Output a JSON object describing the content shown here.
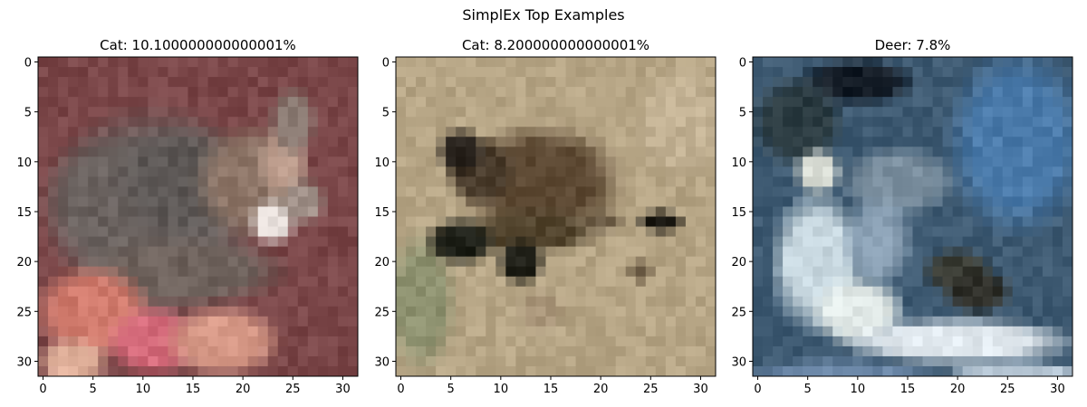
{
  "figure": {
    "suptitle": "SimplEx Top Examples"
  },
  "chart_data": [
    {
      "type": "heatmap",
      "title": "Cat: 10.100000000000001%",
      "xlim": [
        -0.5,
        31.5
      ],
      "ylim": [
        31.5,
        -0.5
      ],
      "xticks": [
        0,
        5,
        10,
        15,
        20,
        25,
        30
      ],
      "yticks": [
        0,
        5,
        10,
        15,
        20,
        25,
        30
      ],
      "xtick_labels": [
        "0",
        "5",
        "10",
        "15",
        "20",
        "25",
        "30"
      ],
      "ytick_labels": [
        "0",
        "5",
        "10",
        "15",
        "20",
        "25",
        "30"
      ],
      "background": "#7a4648",
      "blobs": [
        {
          "cx": 11,
          "cy": 15,
          "rx": 9,
          "ry": 9,
          "color": "#6c6462"
        },
        {
          "cx": 7,
          "cy": 14,
          "rx": 6,
          "ry": 6,
          "color": "#6a625f"
        },
        {
          "cx": 14,
          "cy": 12,
          "rx": 6,
          "ry": 5,
          "color": "#5c5755"
        },
        {
          "cx": 21,
          "cy": 12,
          "rx": 5,
          "ry": 5,
          "color": "#8c7466"
        },
        {
          "cx": 24,
          "cy": 10,
          "rx": 2,
          "ry": 3,
          "color": "#c0a090"
        },
        {
          "cx": 25,
          "cy": 6,
          "rx": 2,
          "ry": 3,
          "color": "#8a7a72"
        },
        {
          "cx": 23,
          "cy": 16,
          "rx": 2,
          "ry": 2,
          "color": "#e8e0dc"
        },
        {
          "cx": 26,
          "cy": 14,
          "rx": 2,
          "ry": 2,
          "color": "#a09088"
        },
        {
          "cx": 14,
          "cy": 21,
          "rx": 9,
          "ry": 3,
          "color": "#6e625c"
        },
        {
          "cx": 5,
          "cy": 25,
          "rx": 5,
          "ry": 4,
          "color": "#d07a6c"
        },
        {
          "cx": 11,
          "cy": 28,
          "rx": 4,
          "ry": 3,
          "color": "#d46a7a"
        },
        {
          "cx": 18,
          "cy": 28,
          "rx": 5,
          "ry": 3,
          "color": "#d89a88"
        },
        {
          "cx": 3,
          "cy": 30,
          "rx": 3,
          "ry": 2,
          "color": "#e0b09a"
        }
      ]
    },
    {
      "type": "heatmap",
      "title": "Cat: 8.200000000000001%",
      "xlim": [
        -0.5,
        31.5
      ],
      "ylim": [
        31.5,
        -0.5
      ],
      "xticks": [
        0,
        5,
        10,
        15,
        20,
        25,
        30
      ],
      "yticks": [
        0,
        5,
        10,
        15,
        20,
        25,
        30
      ],
      "xtick_labels": [
        "0",
        "5",
        "10",
        "15",
        "20",
        "25",
        "30"
      ],
      "ytick_labels": [
        "0",
        "5",
        "10",
        "15",
        "20",
        "25",
        "30"
      ],
      "background": "#b6a585",
      "blobs": [
        {
          "cx": 2,
          "cy": 24,
          "rx": 3,
          "ry": 6,
          "color": "#8e9270"
        },
        {
          "cx": 28,
          "cy": 6,
          "rx": 4,
          "ry": 5,
          "color": "#c2b193"
        },
        {
          "cx": 14,
          "cy": 12,
          "rx": 7,
          "ry": 5,
          "color": "#5e4a34"
        },
        {
          "cx": 8,
          "cy": 11,
          "rx": 3,
          "ry": 3,
          "color": "#4a3c2c"
        },
        {
          "cx": 6,
          "cy": 9,
          "rx": 2,
          "ry": 2,
          "color": "#2c2620"
        },
        {
          "cx": 13,
          "cy": 17,
          "rx": 6,
          "ry": 2,
          "color": "#54462f"
        },
        {
          "cx": 6,
          "cy": 18,
          "rx": 3,
          "ry": 2,
          "color": "#1e2018"
        },
        {
          "cx": 12,
          "cy": 20,
          "rx": 2,
          "ry": 2,
          "color": "#202018"
        },
        {
          "cx": 20,
          "cy": 16,
          "rx": 2,
          "ry": 1,
          "color": "#6a5a44"
        },
        {
          "cx": 26,
          "cy": 16,
          "rx": 2,
          "ry": 1,
          "color": "#1c1a14"
        },
        {
          "cx": 24,
          "cy": 21,
          "rx": 1,
          "ry": 1,
          "color": "#5a4a34"
        },
        {
          "cx": 14,
          "cy": 25,
          "rx": 2,
          "ry": 2,
          "color": "#a89478"
        }
      ]
    },
    {
      "type": "heatmap",
      "title": "Deer: 7.8%",
      "xlim": [
        -0.5,
        31.5
      ],
      "ylim": [
        31.5,
        -0.5
      ],
      "xticks": [
        0,
        5,
        10,
        15,
        20,
        25,
        30
      ],
      "yticks": [
        0,
        5,
        10,
        15,
        20,
        25,
        30
      ],
      "xtick_labels": [
        "0",
        "5",
        "10",
        "15",
        "20",
        "25",
        "30"
      ],
      "ytick_labels": [
        "0",
        "5",
        "10",
        "15",
        "20",
        "25",
        "30"
      ],
      "background": "#3e5a72",
      "blobs": [
        {
          "cx": 26,
          "cy": 8,
          "rx": 6,
          "ry": 8,
          "color": "#4a7aaa"
        },
        {
          "cx": 10,
          "cy": 2,
          "rx": 5,
          "ry": 2,
          "color": "#141c26"
        },
        {
          "cx": 4,
          "cy": 6,
          "rx": 4,
          "ry": 4,
          "color": "#2a3a40"
        },
        {
          "cx": 14,
          "cy": 12,
          "rx": 5,
          "ry": 3,
          "color": "#7a8e9e"
        },
        {
          "cx": 6,
          "cy": 11,
          "rx": 2,
          "ry": 2,
          "color": "#d8dcd4"
        },
        {
          "cx": 6,
          "cy": 20,
          "rx": 4,
          "ry": 6,
          "color": "#c8d8e0"
        },
        {
          "cx": 10,
          "cy": 25,
          "rx": 4,
          "ry": 3,
          "color": "#e2eae8"
        },
        {
          "cx": 20,
          "cy": 28,
          "rx": 10,
          "ry": 2,
          "color": "#e0e8ee"
        },
        {
          "cx": 12,
          "cy": 18,
          "rx": 3,
          "ry": 4,
          "color": "#8aa0b4"
        },
        {
          "cx": 20,
          "cy": 21,
          "rx": 3,
          "ry": 2,
          "color": "#3a3c34"
        },
        {
          "cx": 22,
          "cy": 23,
          "rx": 3,
          "ry": 2,
          "color": "#2e2e28"
        },
        {
          "cx": 8,
          "cy": 31,
          "rx": 8,
          "ry": 1,
          "color": "#6a86a6"
        },
        {
          "cx": 26,
          "cy": 31,
          "rx": 6,
          "ry": 1,
          "color": "#b4c4d2"
        }
      ]
    }
  ]
}
